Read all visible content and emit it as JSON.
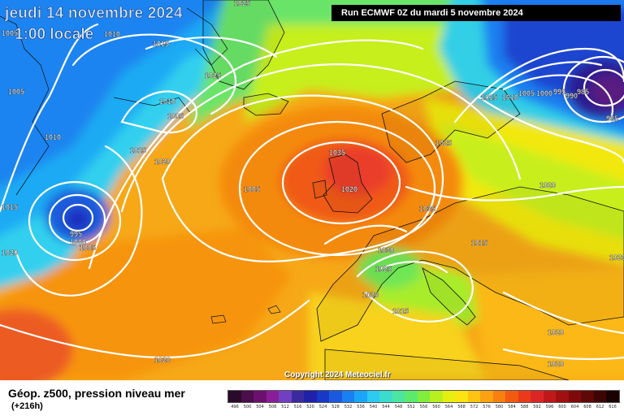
{
  "header": {
    "date_title": "jeudi 14 novembre 2024",
    "time_title": "1:00 locale",
    "run_info": "Run ECMWF 0Z du mardi 5 novembre 2024"
  },
  "copyright": "Copyright 2024 Meteociel.fr",
  "footer": {
    "title": "Géop. z500, pression niveau mer",
    "lead_time": "(+216h)"
  },
  "legend": {
    "labels": [
      "496",
      "500",
      "504",
      "508",
      "512",
      "516",
      "520",
      "524",
      "528",
      "532",
      "536",
      "540",
      "544",
      "548",
      "552",
      "556",
      "560",
      "564",
      "568",
      "572",
      "576",
      "580",
      "584",
      "588",
      "592",
      "596",
      "600",
      "604",
      "608",
      "612",
      "616"
    ],
    "colors": [
      "#2a0a2a",
      "#4b0d4b",
      "#6c1070",
      "#8a1e9a",
      "#7040c0",
      "#3a2aa0",
      "#2020a8",
      "#1838c8",
      "#1a58e0",
      "#1a7ff0",
      "#1aa6f8",
      "#2ccaf0",
      "#3adccc",
      "#4ae6a0",
      "#5cea6c",
      "#80ee3a",
      "#b6f01e",
      "#e6ee10",
      "#fbe410",
      "#fcc410",
      "#fca210",
      "#f87f10",
      "#f25a10",
      "#ea3a1a",
      "#dc2626",
      "#c01818",
      "#a01010",
      "#800a0a",
      "#5e0808",
      "#3e0505",
      "#1a0202"
    ]
  },
  "isobar_labels": [
    "1025",
    "1010",
    "1015",
    "1005",
    "1025",
    "1010",
    "1005",
    "1010",
    "1015",
    "1020",
    "1015",
    "995",
    "1000",
    "1005",
    "1020",
    "1035",
    "1025",
    "1015",
    "1010",
    "1005",
    "1000",
    "995",
    "990",
    "985",
    "985",
    "1020",
    "1035",
    "1030",
    "1025",
    "1020",
    "1015",
    "1020",
    "1020",
    "1020",
    "1020",
    "1020",
    "1005",
    "1005",
    "1015"
  ],
  "colors": {
    "isobar": "#ffffff",
    "coast": "#000000"
  }
}
